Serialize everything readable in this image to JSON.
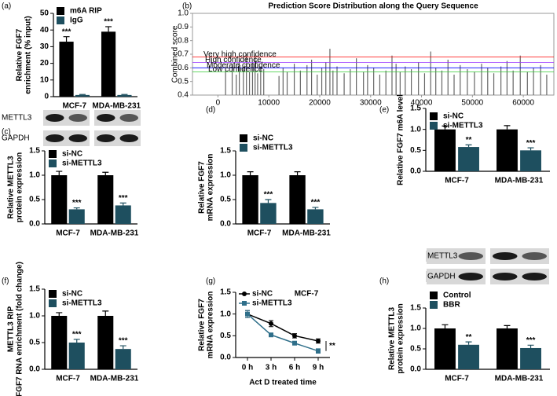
{
  "chart_data": [
    {
      "type": "bar",
      "panel_label": "(a)",
      "ylabel": [
        "Relative FGF7",
        "enrichment (% input)"
      ],
      "categories": [
        "MCF-7",
        "MDA-MB-231"
      ],
      "ylim": [
        0,
        50
      ],
      "yticks": [
        0,
        10,
        20,
        30,
        40,
        50
      ],
      "series": [
        {
          "name": "m6A RIP",
          "color": "#000000",
          "values": [
            33,
            39
          ],
          "errors": [
            3,
            3
          ],
          "significance": [
            "***",
            "***"
          ]
        },
        {
          "name": "IgG",
          "color": "#1e4f5f",
          "values": [
            1,
            1
          ],
          "errors": [
            0.3,
            0.3
          ]
        }
      ]
    },
    {
      "type": "spike",
      "panel_label": "(b)",
      "title": "Prediction Score Distribution along the Query Sequence",
      "ylabel": [
        "Combined score"
      ],
      "xlim": [
        -5000,
        66000
      ],
      "xticks": [
        0,
        10000,
        20000,
        30000,
        40000,
        50000,
        60000
      ],
      "ylim": [
        0.4,
        1.0
      ],
      "yticks": [
        0.4,
        0.5,
        0.6,
        0.7,
        0.8,
        0.9,
        {
          "value": 1,
          "label": "1.0"
        }
      ],
      "color": "#666666",
      "thresholds": [
        {
          "label": "Very high confidence",
          "value": 0.68,
          "color": "#ff0000"
        },
        {
          "label": "High confidence",
          "value": 0.64,
          "color": "#9933ff"
        },
        {
          "label": "Moderate confidence",
          "value": 0.6,
          "color": "#0000ff"
        },
        {
          "label": "Low confidence",
          "value": 0.57,
          "color": "#33cc33"
        }
      ],
      "x": [
        1500,
        2800,
        3600,
        4200,
        5000,
        5600,
        6200,
        6800,
        7300,
        7800,
        8400,
        9000,
        12000,
        12800,
        13600,
        15000,
        16200,
        17500,
        18400,
        19500,
        20400,
        21200,
        22000,
        22600,
        23400,
        24800,
        26000,
        27200,
        28600,
        29400,
        30600,
        31800,
        33000,
        34200,
        35000,
        35800,
        36800,
        38000,
        39400,
        40600,
        41800,
        42800,
        44000,
        45200,
        46400,
        47600,
        49000,
        50400,
        51800,
        53000,
        54200,
        55600,
        56800,
        58000,
        59400,
        60800,
        62000,
        63400,
        64600
      ],
      "values": [
        0.58,
        0.62,
        0.55,
        0.66,
        0.6,
        0.7,
        0.57,
        0.64,
        0.69,
        0.56,
        0.61,
        0.59,
        0.54,
        0.6,
        0.57,
        0.63,
        0.58,
        0.62,
        0.66,
        0.55,
        0.6,
        0.64,
        0.74,
        0.58,
        0.61,
        0.56,
        0.59,
        0.67,
        0.57,
        0.62,
        0.6,
        0.55,
        0.58,
        0.69,
        0.63,
        0.57,
        0.61,
        0.59,
        0.64,
        0.56,
        0.72,
        0.6,
        0.58,
        0.66,
        0.55,
        0.62,
        0.59,
        0.57,
        0.63,
        0.6,
        0.56,
        0.61,
        0.65,
        0.58,
        0.69,
        0.57,
        0.6,
        0.62,
        0.55
      ]
    },
    {
      "type": "bar",
      "panel_label": "(c)",
      "ylabel": [
        "Relative METTL3",
        "protein expression"
      ],
      "blot_labels": [
        "METTL3",
        "GAPDH"
      ],
      "categories": [
        "MCF-7",
        "MDA-MB-231"
      ],
      "ylim": [
        0,
        1.5
      ],
      "yticks": [
        {
          "value": 0,
          "label": "0.0"
        },
        0.5,
        {
          "value": 1,
          "label": "1.0"
        },
        1.5
      ],
      "series": [
        {
          "name": "si-NC",
          "color": "#000000",
          "values": [
            1.0,
            1.0
          ],
          "errors": [
            0.08,
            0.06
          ]
        },
        {
          "name": "si-METTL3",
          "color": "#1e4f5f",
          "values": [
            0.3,
            0.38
          ],
          "errors": [
            0.03,
            0.05
          ],
          "significance": [
            "***",
            "***"
          ]
        }
      ]
    },
    {
      "type": "bar",
      "panel_label": "(d)",
      "ylabel": [
        "Relative FGF7",
        "mRNA expression"
      ],
      "categories": [
        "MCF-7",
        "MDA-MB-231"
      ],
      "ylim": [
        0,
        1.5
      ],
      "yticks": [
        {
          "value": 0,
          "label": "0.0"
        },
        0.5,
        {
          "value": 1,
          "label": "1.0"
        },
        1.5
      ],
      "series": [
        {
          "name": "si-NC",
          "color": "#000000",
          "values": [
            1.0,
            1.0
          ],
          "errors": [
            0.07,
            0.07
          ]
        },
        {
          "name": "si-METTL3",
          "color": "#1e4f5f",
          "values": [
            0.43,
            0.3
          ],
          "errors": [
            0.07,
            0.04
          ],
          "significance": [
            "***",
            "***"
          ]
        }
      ]
    },
    {
      "type": "bar",
      "panel_label": "(e)",
      "ylabel": [
        "Relative FGF7 m6A level"
      ],
      "categories": [
        "MCF-7",
        "MDA-MB-231"
      ],
      "ylim": [
        0,
        1.5
      ],
      "yticks": [
        {
          "value": 0,
          "label": "0.0"
        },
        0.5,
        {
          "value": 1,
          "label": "1.0"
        },
        1.5
      ],
      "series": [
        {
          "name": "si-NC",
          "color": "#000000",
          "values": [
            1.0,
            1.0
          ],
          "errors": [
            0.08,
            0.09
          ]
        },
        {
          "name": "si-METTL3",
          "color": "#1e4f5f",
          "values": [
            0.58,
            0.5
          ],
          "errors": [
            0.05,
            0.06
          ],
          "significance": [
            "**",
            "***"
          ]
        }
      ]
    },
    {
      "type": "bar",
      "panel_label": "(f)",
      "ylabel": [
        "METTL3 RIP",
        "FGF7 RNA enrichment (fold change)"
      ],
      "categories": [
        "MCF-7",
        "MDA-MB-231"
      ],
      "ylim": [
        0,
        1.5
      ],
      "yticks": [
        {
          "value": 0,
          "label": "0.0"
        },
        0.5,
        {
          "value": 1,
          "label": "1.0"
        },
        1.5
      ],
      "series": [
        {
          "name": "si-NC",
          "color": "#000000",
          "values": [
            1.0,
            1.0
          ],
          "errors": [
            0.06,
            0.09
          ]
        },
        {
          "name": "si-METTL3",
          "color": "#1e4f5f",
          "values": [
            0.5,
            0.38
          ],
          "errors": [
            0.06,
            0.06
          ],
          "significance": [
            "***",
            "***"
          ]
        }
      ]
    },
    {
      "type": "line",
      "panel_label": "(g)",
      "title": "MCF-7",
      "ylabel": [
        "Relative FGF7",
        "mRNA expression"
      ],
      "xlabel": "Act D treated time",
      "categories": [
        "0 h",
        "3 h",
        "6 h",
        "9 h"
      ],
      "ylim": [
        0,
        1.5
      ],
      "yticks": [
        {
          "value": 0,
          "label": "0.0"
        },
        0.5,
        {
          "value": 1,
          "label": "1.0"
        },
        1.5
      ],
      "significance": "**",
      "series": [
        {
          "name": "si-NC",
          "color": "#000000",
          "values": [
            1.0,
            0.78,
            0.5,
            0.38
          ],
          "errors": [
            0.08,
            0.07,
            0.05,
            0.05
          ]
        },
        {
          "name": "si-METTL3",
          "color": "#2f6f8a",
          "values": [
            1.0,
            0.52,
            0.33,
            0.15
          ],
          "errors": [
            0.08,
            0.04,
            0.04,
            0.05
          ]
        }
      ]
    },
    {
      "type": "bar",
      "panel_label": "(h)",
      "ylabel": [
        "Relative METTL3",
        "protein expression"
      ],
      "blot_labels": [
        "METTL3",
        "GAPDH"
      ],
      "categories": [
        "MCF-7",
        "MDA-MB-231"
      ],
      "ylim": [
        0,
        1.5
      ],
      "yticks": [
        {
          "value": 0,
          "label": "0.0"
        },
        0.5,
        {
          "value": 1,
          "label": "1.0"
        },
        1.5
      ],
      "series": [
        {
          "name": "Control",
          "color": "#000000",
          "values": [
            1.0,
            1.0
          ],
          "errors": [
            0.09,
            0.07
          ]
        },
        {
          "name": "BBR",
          "color": "#1e4f5f",
          "values": [
            0.6,
            0.52
          ],
          "errors": [
            0.07,
            0.07
          ],
          "significance": [
            "**",
            "***"
          ]
        }
      ]
    }
  ]
}
